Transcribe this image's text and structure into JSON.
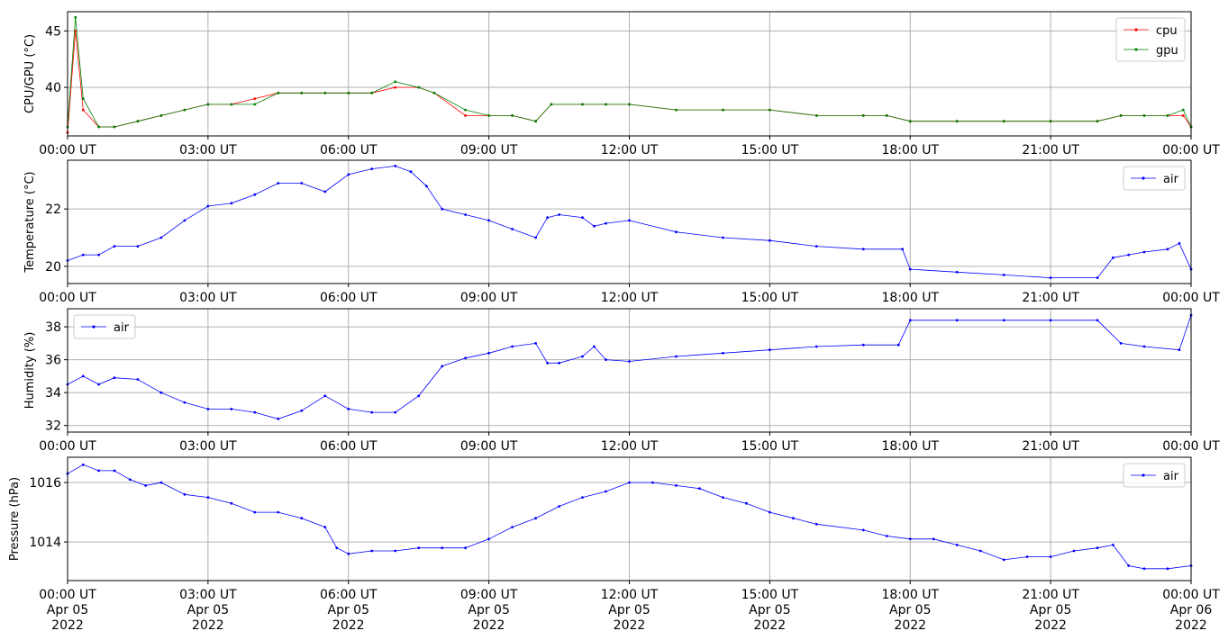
{
  "colors": {
    "cpu": "#ff0000",
    "gpu": "#008000",
    "air": "#0000ff",
    "grid": "#b0b0b0"
  },
  "x_tick_labels": [
    "00:00 UT",
    "03:00 UT",
    "06:00 UT",
    "09:00 UT",
    "12:00 UT",
    "15:00 UT",
    "18:00 UT",
    "21:00 UT",
    "00:00 UT"
  ],
  "x_date_labels": [
    "Apr 05",
    "Apr 05",
    "Apr 05",
    "Apr 05",
    "Apr 05",
    "Apr 05",
    "Apr 05",
    "Apr 05",
    "Apr 06"
  ],
  "x_year_labels": [
    "2022",
    "2022",
    "2022",
    "2022",
    "2022",
    "2022",
    "2022",
    "2022",
    "2022"
  ],
  "chart_data": [
    {
      "type": "line",
      "ylabel": "CPU/GPU (°C)",
      "ylim": [
        35.7,
        46.7
      ],
      "yticks": [
        40,
        45
      ],
      "ytick_labels": [
        "40",
        "45"
      ],
      "grid": true,
      "legend": "top-right",
      "x": [
        "00:00",
        "00:10",
        "00:20",
        "00:40",
        "01:00",
        "01:30",
        "02:00",
        "02:30",
        "03:00",
        "03:30",
        "04:00",
        "04:30",
        "05:00",
        "05:30",
        "06:00",
        "06:30",
        "07:00",
        "07:30",
        "07:50",
        "08:30",
        "09:00",
        "09:30",
        "10:00",
        "10:20",
        "11:00",
        "11:30",
        "12:00",
        "13:00",
        "14:00",
        "15:00",
        "16:00",
        "17:00",
        "17:30",
        "18:00",
        "19:00",
        "20:00",
        "21:00",
        "22:00",
        "22:30",
        "23:00",
        "23:30",
        "23:50",
        "24:00"
      ],
      "series": [
        {
          "name": "cpu",
          "values": [
            36,
            45,
            38,
            36.5,
            36.5,
            37,
            37.5,
            38,
            38.5,
            38.5,
            39,
            39.5,
            39.5,
            39.5,
            39.5,
            39.5,
            40,
            40,
            39.5,
            37.5,
            37.5,
            37.5,
            37,
            38.5,
            38.5,
            38.5,
            38.5,
            38,
            38,
            38,
            37.5,
            37.5,
            37.5,
            37,
            37,
            37,
            37,
            37,
            37.5,
            37.5,
            37.5,
            37.5,
            36.5
          ]
        },
        {
          "name": "gpu",
          "values": [
            36.5,
            46.2,
            39,
            36.5,
            36.5,
            37,
            37.5,
            38,
            38.5,
            38.5,
            38.5,
            39.5,
            39.5,
            39.5,
            39.5,
            39.5,
            40.5,
            40,
            39.5,
            38,
            37.5,
            37.5,
            37,
            38.5,
            38.5,
            38.5,
            38.5,
            38,
            38,
            38,
            37.5,
            37.5,
            37.5,
            37,
            37,
            37,
            37,
            37,
            37.5,
            37.5,
            37.5,
            38,
            36.5
          ]
        }
      ]
    },
    {
      "type": "line",
      "ylabel": "Temperature (°C)",
      "ylim": [
        19.4,
        23.7
      ],
      "yticks": [
        20,
        22
      ],
      "ytick_labels": [
        "20",
        "22"
      ],
      "grid": true,
      "legend": "top-right",
      "x": [
        "00:00",
        "00:20",
        "00:40",
        "01:00",
        "01:30",
        "02:00",
        "02:30",
        "03:00",
        "03:30",
        "04:00",
        "04:30",
        "05:00",
        "05:30",
        "06:00",
        "06:30",
        "07:00",
        "07:20",
        "07:40",
        "08:00",
        "08:30",
        "09:00",
        "09:30",
        "10:00",
        "10:15",
        "10:30",
        "11:00",
        "11:15",
        "11:30",
        "12:00",
        "13:00",
        "14:00",
        "15:00",
        "16:00",
        "17:00",
        "17:50",
        "18:00",
        "19:00",
        "20:00",
        "21:00",
        "22:00",
        "22:20",
        "22:40",
        "23:00",
        "23:30",
        "23:45",
        "24:00"
      ],
      "series": [
        {
          "name": "air",
          "values": [
            20.2,
            20.4,
            20.4,
            20.7,
            20.7,
            21,
            21.6,
            22.1,
            22.2,
            22.5,
            22.9,
            22.9,
            22.6,
            23.2,
            23.4,
            23.5,
            23.3,
            22.8,
            22,
            21.8,
            21.6,
            21.3,
            21,
            21.7,
            21.8,
            21.7,
            21.4,
            21.5,
            21.6,
            21.2,
            21,
            20.9,
            20.7,
            20.6,
            20.6,
            19.9,
            19.8,
            19.7,
            19.6,
            19.6,
            20.3,
            20.4,
            20.5,
            20.6,
            20.8,
            19.9
          ]
        }
      ]
    },
    {
      "type": "line",
      "ylabel": "Humidity (%)",
      "ylim": [
        31.6,
        39.1
      ],
      "yticks": [
        32,
        34,
        36,
        38
      ],
      "ytick_labels": [
        "32",
        "34",
        "36",
        "38"
      ],
      "grid": true,
      "legend": "top-left",
      "x": [
        "00:00",
        "00:20",
        "00:40",
        "01:00",
        "01:30",
        "02:00",
        "02:30",
        "03:00",
        "03:30",
        "04:00",
        "04:30",
        "05:00",
        "05:30",
        "06:00",
        "06:30",
        "07:00",
        "07:30",
        "08:00",
        "08:30",
        "09:00",
        "09:30",
        "10:00",
        "10:15",
        "10:30",
        "11:00",
        "11:15",
        "11:30",
        "12:00",
        "13:00",
        "14:00",
        "15:00",
        "16:00",
        "17:00",
        "17:45",
        "18:00",
        "19:00",
        "20:00",
        "21:00",
        "22:00",
        "22:30",
        "23:00",
        "23:45",
        "24:00"
      ],
      "series": [
        {
          "name": "air",
          "values": [
            34.5,
            35,
            34.5,
            34.9,
            34.8,
            34,
            33.4,
            33,
            33,
            32.8,
            32.4,
            32.9,
            33.8,
            33,
            32.8,
            32.8,
            33.8,
            35.6,
            36.1,
            36.4,
            36.8,
            37,
            35.8,
            35.8,
            36.2,
            36.8,
            36,
            35.9,
            36.2,
            36.4,
            36.6,
            36.8,
            36.9,
            36.9,
            38.4,
            38.4,
            38.4,
            38.4,
            38.4,
            37,
            36.8,
            36.6,
            38.7
          ]
        }
      ]
    },
    {
      "type": "line",
      "ylabel": "Pressure (hPa)",
      "ylim": [
        1012.7,
        1016.85
      ],
      "yticks": [
        1014,
        1016
      ],
      "ytick_labels": [
        "1014",
        "1016"
      ],
      "grid": true,
      "legend": "top-right",
      "x": [
        "00:00",
        "00:20",
        "00:40",
        "01:00",
        "01:20",
        "01:40",
        "02:00",
        "02:30",
        "03:00",
        "03:30",
        "04:00",
        "04:30",
        "05:00",
        "05:30",
        "05:45",
        "06:00",
        "06:30",
        "07:00",
        "07:30",
        "08:00",
        "08:30",
        "09:00",
        "09:30",
        "10:00",
        "10:30",
        "11:00",
        "11:30",
        "12:00",
        "12:30",
        "13:00",
        "13:30",
        "14:00",
        "14:30",
        "15:00",
        "15:30",
        "16:00",
        "17:00",
        "17:30",
        "18:00",
        "18:30",
        "19:00",
        "19:30",
        "20:00",
        "20:30",
        "21:00",
        "21:30",
        "22:00",
        "22:20",
        "22:40",
        "23:00",
        "23:30",
        "24:00"
      ],
      "series": [
        {
          "name": "air",
          "values": [
            1016.3,
            1016.6,
            1016.4,
            1016.4,
            1016.1,
            1015.9,
            1016,
            1015.6,
            1015.5,
            1015.3,
            1015,
            1015,
            1014.8,
            1014.5,
            1013.8,
            1013.6,
            1013.7,
            1013.7,
            1013.8,
            1013.8,
            1013.8,
            1014.1,
            1014.5,
            1014.8,
            1015.2,
            1015.5,
            1015.7,
            1016,
            1016,
            1015.9,
            1015.8,
            1015.5,
            1015.3,
            1015,
            1014.8,
            1014.6,
            1014.4,
            1014.2,
            1014.1,
            1014.1,
            1013.9,
            1013.7,
            1013.4,
            1013.5,
            1013.5,
            1013.7,
            1013.8,
            1013.9,
            1013.2,
            1013.1,
            1013.1,
            1013.2
          ]
        }
      ]
    }
  ]
}
